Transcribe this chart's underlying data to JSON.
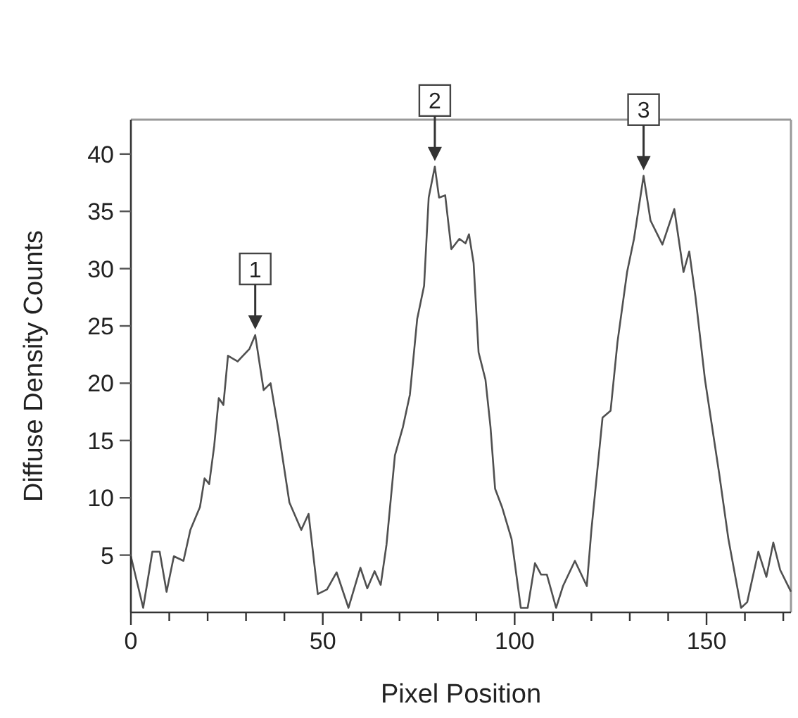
{
  "chart_data": {
    "type": "line",
    "xlabel": "Pixel Position",
    "ylabel": "Diffuse Density Counts",
    "xlim": [
      0,
      172
    ],
    "ylim": [
      0,
      43
    ],
    "xticks": [
      0,
      {
        "value": 10,
        "label": null
      },
      {
        "value": 20,
        "label": null
      },
      {
        "value": 30,
        "label": null
      },
      {
        "value": 40,
        "label": null
      },
      50,
      {
        "value": 60,
        "label": null
      },
      {
        "value": 70,
        "label": null
      },
      {
        "value": 80,
        "label": null
      },
      {
        "value": 90,
        "label": null
      },
      100,
      {
        "value": 110,
        "label": null
      },
      {
        "value": 120,
        "label": null
      },
      {
        "value": 130,
        "label": null
      },
      {
        "value": 140,
        "label": null
      },
      150,
      {
        "value": 160,
        "label": null
      },
      {
        "value": 170,
        "label": null
      }
    ],
    "yticks": [
      5,
      10,
      15,
      20,
      25,
      30,
      35,
      40
    ],
    "grid": false,
    "marker": "none",
    "line_style": "solid",
    "annotations": [
      {
        "text": "1",
        "x": 32.4,
        "y": 24.2
      },
      {
        "text": "2",
        "x": 79.2,
        "y": 38.9
      },
      {
        "text": "3",
        "x": 133.6,
        "y": 38.1
      }
    ],
    "series": [
      {
        "color": "#505050",
        "x": [
          0,
          3.2,
          5.6,
          7.5,
          9.3,
          11.2,
          13.7,
          15.5,
          18,
          19.2,
          20.4,
          21.7,
          22.9,
          24.1,
          25.3,
          27.8,
          30.9,
          32.4,
          34.6,
          36.4,
          38.3,
          41.3,
          44.4,
          46.3,
          48.7,
          51.1,
          53.6,
          56.7,
          59.8,
          61.6,
          63.5,
          65.1,
          66.6,
          68.8,
          70.9,
          72.7,
          74.6,
          76.4,
          77.6,
          79.2,
          80.3,
          81.9,
          83.5,
          85.6,
          87.2,
          88.1,
          89.3,
          90.6,
          92.4,
          93.7,
          94.9,
          96.7,
          99.2,
          101.6,
          103.4,
          105.3,
          106.9,
          108.4,
          110.8,
          112.6,
          115.7,
          118.8,
          120,
          122.9,
          125,
          126.8,
          129.3,
          131.1,
          133.6,
          135.4,
          138.5,
          141.6,
          144,
          145.5,
          147.1,
          149.6,
          153.3,
          155.7,
          159,
          160.6,
          163.5,
          165.6,
          167.4,
          169.2,
          172
        ],
        "values": [
          4.9,
          0.4,
          5.3,
          5.3,
          1.8,
          4.9,
          4.5,
          7.2,
          9.2,
          11.7,
          11.2,
          14.5,
          18.7,
          18.1,
          22.4,
          21.9,
          23,
          24.2,
          19.4,
          20,
          16.2,
          9.6,
          7.2,
          8.6,
          1.6,
          2,
          3.5,
          0.4,
          3.9,
          2.1,
          3.6,
          2.4,
          5.9,
          13.7,
          16.2,
          19,
          25.6,
          28.5,
          36.2,
          38.9,
          36.2,
          36.4,
          31.7,
          32.6,
          32.2,
          33,
          30.5,
          22.7,
          20.3,
          16.2,
          10.8,
          9.2,
          6.4,
          0.4,
          0.4,
          4.3,
          3.3,
          3.3,
          0.4,
          2.3,
          4.5,
          2.3,
          7.2,
          17,
          17.6,
          23.6,
          29.7,
          32.6,
          38.1,
          34.2,
          32.1,
          35.2,
          29.7,
          31.5,
          27.6,
          20.3,
          12.1,
          6.4,
          0.4,
          0.9,
          5.3,
          3.1,
          6.1,
          3.7,
          1.8
        ]
      }
    ]
  }
}
